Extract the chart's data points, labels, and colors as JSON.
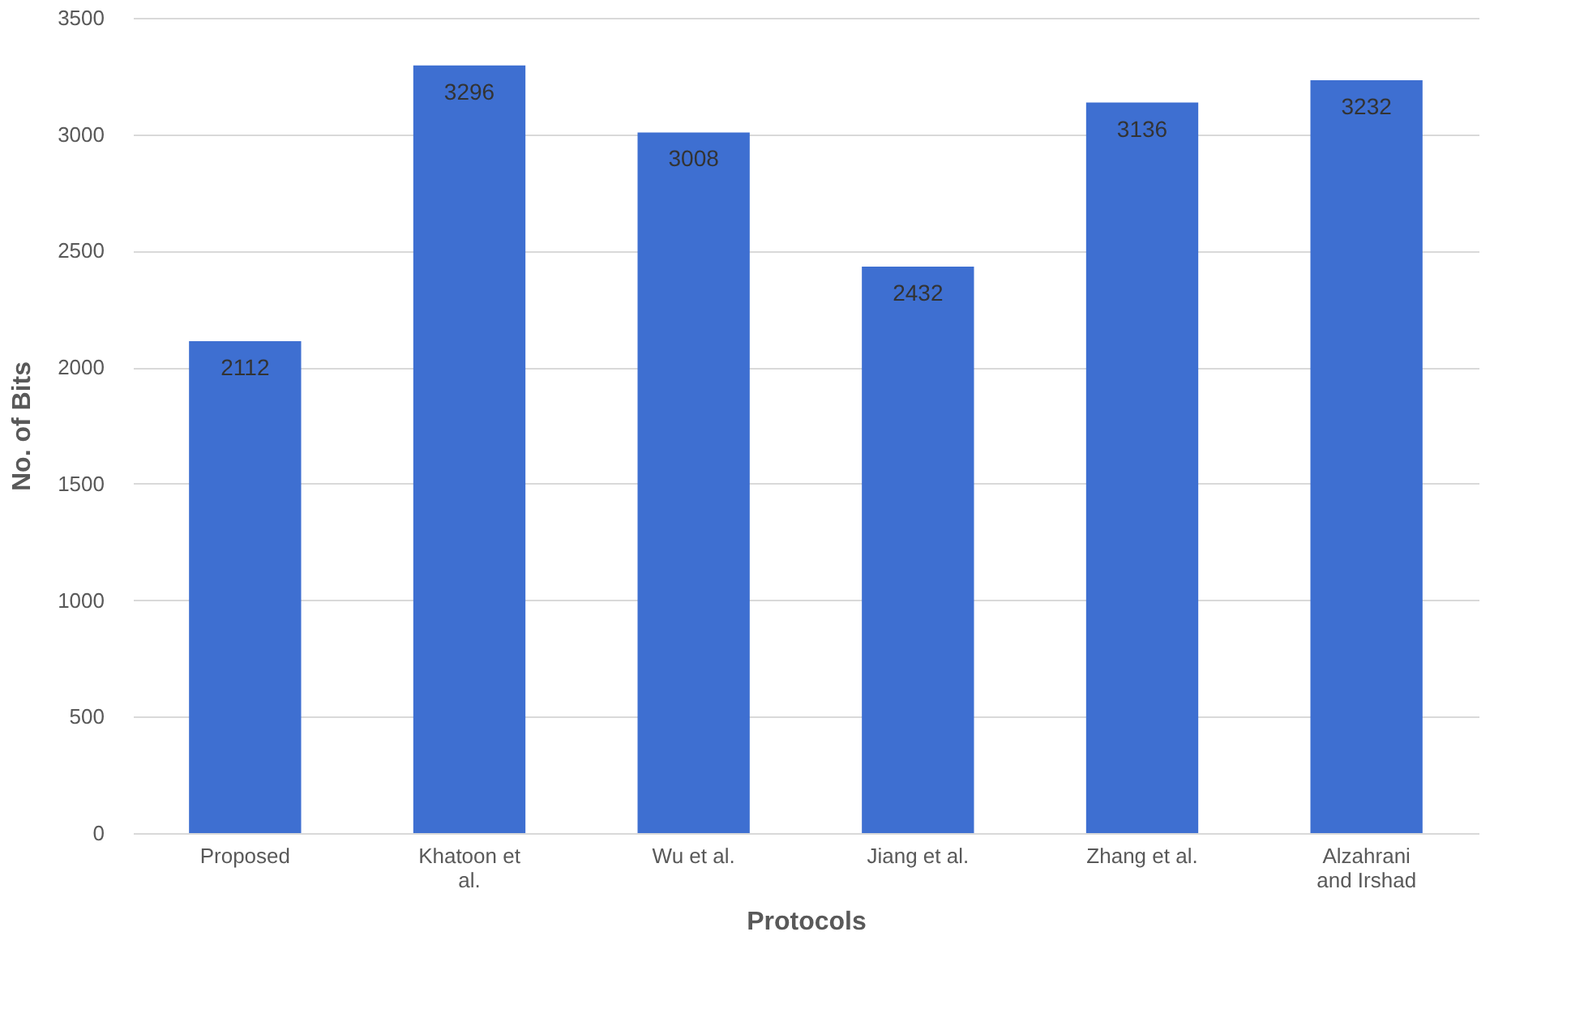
{
  "chart_data": {
    "type": "bar",
    "categories": [
      "Proposed",
      "Khatoon et al.",
      "Wu et al.",
      "Jiang et al.",
      "Zhang et al.",
      "Alzahrani and Irshad"
    ],
    "values": [
      2112,
      3296,
      3008,
      2432,
      3136,
      3232
    ],
    "color": "#3e6fd1",
    "xlabel": "Protocols",
    "ylabel": "No. of Bits",
    "ylim": [
      0,
      3500
    ],
    "yticks": [
      0,
      500,
      1000,
      1500,
      2000,
      2500,
      3000,
      3500
    ],
    "grid": "y",
    "data_labels": true
  }
}
